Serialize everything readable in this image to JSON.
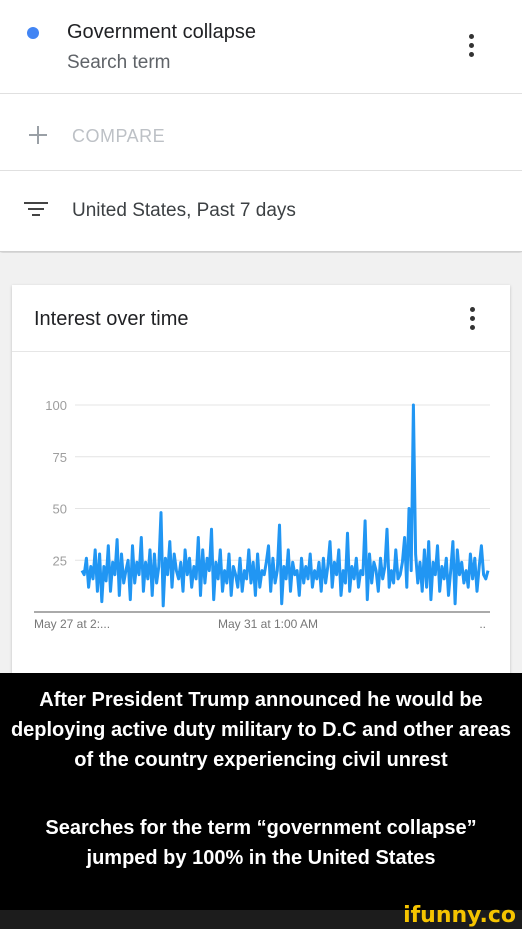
{
  "search_term": {
    "title": "Government collapse",
    "subtitle": "Search term",
    "dot_color": "#4285f4",
    "menu_icon": "more-vert-icon"
  },
  "compare": {
    "icon": "plus-icon",
    "label": "COMPARE"
  },
  "filter": {
    "icon": "filter-icon",
    "label": "United States, Past 7 days"
  },
  "chart_card": {
    "title": "Interest over time",
    "menu_icon": "more-vert-icon"
  },
  "caption": {
    "line1": "After President Trump announced he would be deploying active duty military to D.C and other areas of the country experiencing civil unrest",
    "line2": "Searches for the term “government collapse” jumped by 100% in the United States"
  },
  "watermark": "ifunny.co",
  "chart_data": {
    "type": "line",
    "title": "Interest over time",
    "ylim": [
      0,
      100
    ],
    "y_ticks": [
      "100",
      "75",
      "50",
      "25"
    ],
    "x_tick_labels": [
      "May 27 at 2:...",
      "May 31 at 1:00 AM",
      ".."
    ],
    "grid": true,
    "line_color": "#2196f3",
    "series": [
      {
        "values": [
          20,
          18,
          26,
          12,
          22,
          16,
          30,
          10,
          28,
          5,
          22,
          15,
          32,
          10,
          24,
          18,
          35,
          8,
          28,
          14,
          20,
          25,
          6,
          32,
          14,
          24,
          18,
          36,
          10,
          24,
          16,
          30,
          8,
          28,
          14,
          22,
          48,
          3,
          26,
          18,
          34,
          12,
          28,
          20,
          16,
          24,
          10,
          30,
          18,
          26,
          12,
          22,
          16,
          36,
          8,
          30,
          14,
          26,
          20,
          40,
          6,
          24,
          16,
          30,
          10,
          20,
          14,
          28,
          8,
          22,
          18,
          12,
          26,
          10,
          20,
          16,
          30,
          14,
          24,
          8,
          28,
          12,
          20,
          18,
          24,
          32,
          10,
          26,
          14,
          20,
          42,
          4,
          22,
          16,
          30,
          10,
          24,
          18,
          20,
          8,
          26,
          14,
          22,
          16,
          28,
          12,
          20,
          16,
          24,
          10,
          26,
          14,
          22,
          34,
          12,
          24,
          18,
          30,
          8,
          20,
          14,
          38,
          10,
          22,
          16,
          26,
          12,
          20,
          18,
          44,
          6,
          28,
          14,
          24,
          20,
          10,
          26,
          16,
          22,
          40,
          12,
          20,
          14,
          30,
          16,
          18,
          24,
          36,
          12,
          50,
          20,
          100,
          28,
          14,
          24,
          10,
          30,
          12,
          34,
          6,
          24,
          18,
          32,
          10,
          22,
          16,
          26,
          8,
          20,
          34,
          4,
          30,
          18,
          24,
          14,
          20,
          12,
          28,
          16,
          26,
          10,
          22,
          32,
          18,
          16,
          20
        ]
      }
    ]
  }
}
